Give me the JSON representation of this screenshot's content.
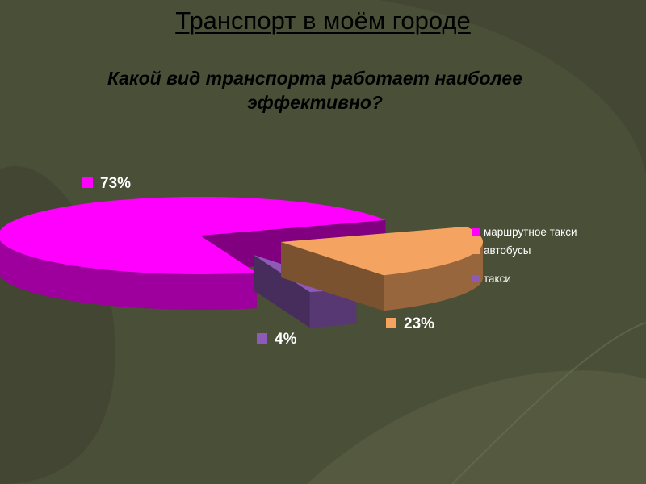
{
  "slide": {
    "title": "Транспорт в моём городе",
    "question": "Какой вид транспорта работает наиболее эффективно?"
  },
  "theme": {
    "background": "#4a4f38",
    "swirl_dark": "#3f4330",
    "swirl_light": "#5e6448",
    "label_text": "#ffffff"
  },
  "chart_data": {
    "type": "pie",
    "style": "3d-exploded",
    "categories": [
      "маршрутное такси",
      "автобусы",
      "такси"
    ],
    "values": [
      73,
      23,
      4
    ],
    "colors": [
      "#ff00ff",
      "#f4a460",
      "#8e5ab8"
    ],
    "data_labels": [
      "73%",
      "23%",
      "4%"
    ],
    "legend_position": "right"
  }
}
